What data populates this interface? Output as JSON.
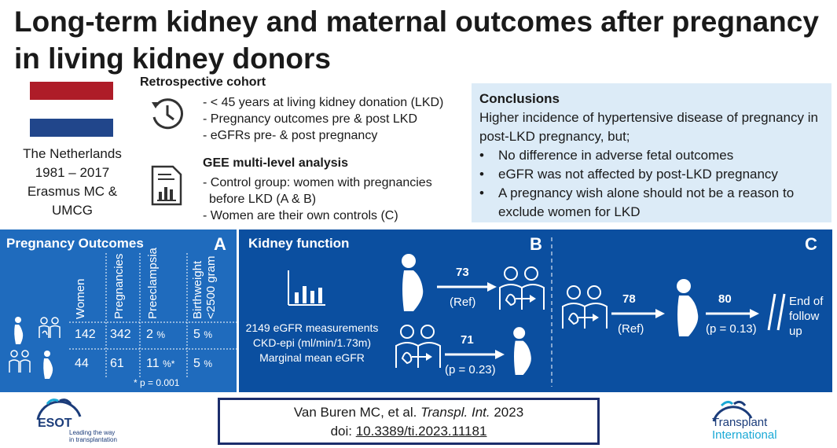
{
  "title": "Long-term kidney and maternal outcomes after pregnancy in living kidney donors",
  "location": {
    "flag_colors": [
      "#ae1c28",
      "#ffffff",
      "#21468b"
    ],
    "lines": [
      "The Netherlands",
      "1981 – 2017",
      "Erasmus MC &",
      "UMCG"
    ]
  },
  "cohort": {
    "heading": "Retrospective cohort",
    "icon": "history-clock-icon",
    "items": [
      "- < 45 years at living kidney donation (LKD)",
      "- Pregnancy outcomes pre & post LKD",
      "- eGFRs pre- & post pregnancy"
    ]
  },
  "gee": {
    "heading": "GEE multi-level analysis",
    "icon": "report-chart-icon",
    "items": [
      "- Control group: women with pregnancies",
      "before LKD (A & B)",
      "- Women are their own controls (C)"
    ]
  },
  "conclusions": {
    "heading": "Conclusions",
    "intro": "Higher incidence of hypertensive disease of pregnancy in post-LKD pregnancy, but;",
    "bullets": [
      "No difference in adverse fetal outcomes",
      "eGFR was not affected by post-LKD pregnancy",
      "A pregnancy wish alone should not be a reason to exclude women for LKD"
    ]
  },
  "panel_a": {
    "title": "Pregnancy Outcomes",
    "letter": "A",
    "headers": [
      "Women",
      "Pregnancies",
      "Preeclampsia",
      "Birthweight <2500 gram"
    ],
    "rows": [
      {
        "women": "142",
        "pregnancies": "342",
        "preeclampsia": "2",
        "preeclampsia_unit": "%",
        "birthweight": "5",
        "birthweight_unit": "%"
      },
      {
        "women": "44",
        "pregnancies": "61",
        "preeclampsia": "11",
        "preeclampsia_unit": "%*",
        "birthweight": "5",
        "birthweight_unit": "%"
      }
    ],
    "footnote": "* p = 0.001"
  },
  "panel_b": {
    "title": "Kidney function",
    "letter": "B",
    "stats": [
      "2149 eGFR measurements",
      "CKD-epi (ml/min/1.73m)",
      "Marginal mean eGFR"
    ],
    "top": {
      "value": "73",
      "label": "(Ref)"
    },
    "bottom": {
      "value": "71",
      "label": "(p = 0.23)"
    }
  },
  "panel_c": {
    "letter": "C",
    "first": {
      "value": "78",
      "label": "(Ref)"
    },
    "second": {
      "value": "80",
      "label": "(p = 0.13)"
    },
    "end_lines": [
      "End of",
      "follow",
      "up"
    ]
  },
  "citation": {
    "authors": "Van Buren MC, et al. ",
    "journal": "Transpl. Int.",
    "year": " 2023",
    "doi_prefix": "doi: ",
    "doi": "10.3389/ti.2023.11181"
  },
  "logos": {
    "esot": {
      "name": "ESOT",
      "tagline_1": "Leading the way",
      "tagline_2": "in transplantation",
      "color": "#1b3c7a"
    },
    "ti": {
      "line1": "Transplant",
      "line2": "International",
      "color": "#1aa9d6"
    }
  },
  "colors": {
    "panel_a": "#1f6bbd",
    "panel_bc": "#0b4fa0",
    "conclusion_bg": "#dcebf7"
  }
}
